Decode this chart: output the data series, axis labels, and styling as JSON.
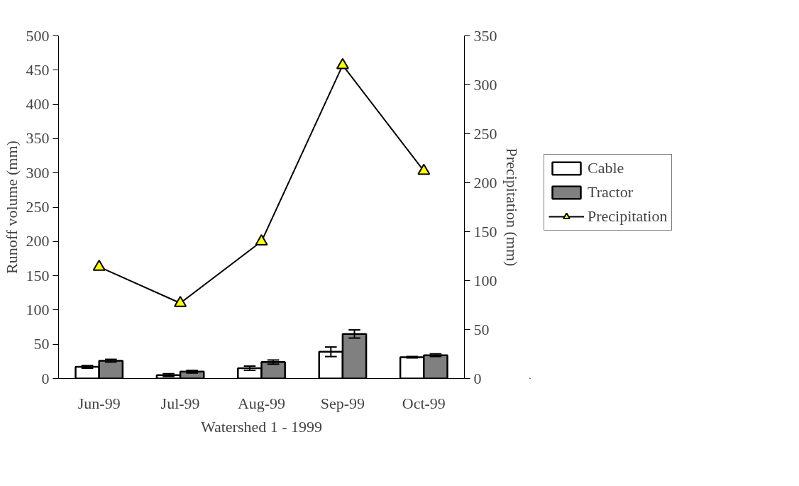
{
  "chart_data": {
    "type": "bar",
    "xlabel": "Watershed 1 - 1999",
    "ylabel": "Runoff volume (mm)",
    "y2label": "Precipitation (mm)",
    "categories": [
      "Jun-99",
      "Jul-99",
      "Aug-99",
      "Sep-99",
      "Oct-99"
    ],
    "series": [
      {
        "name": "Cable",
        "color": "#ffffff",
        "values": [
          17,
          5,
          15,
          39,
          31
        ],
        "errors": [
          2,
          2,
          3,
          7,
          1
        ]
      },
      {
        "name": "Tractor",
        "color": "#808080",
        "values": [
          26,
          10,
          24,
          65,
          34
        ],
        "errors": [
          2,
          2,
          3,
          6,
          2
        ]
      },
      {
        "name": "Precipitation",
        "type": "line",
        "axis": "y2",
        "color": "#000000",
        "marker": "triangle",
        "values": [
          114,
          77,
          140,
          320,
          212
        ]
      }
    ],
    "ylim": [
      0,
      500
    ],
    "yticks": [
      0,
      50,
      100,
      150,
      200,
      250,
      300,
      350,
      400,
      450,
      500
    ],
    "y2lim": [
      0,
      350
    ],
    "y2ticks": [
      0,
      50,
      100,
      150,
      200,
      250,
      300,
      350
    ],
    "grid": false,
    "legend": "right"
  }
}
